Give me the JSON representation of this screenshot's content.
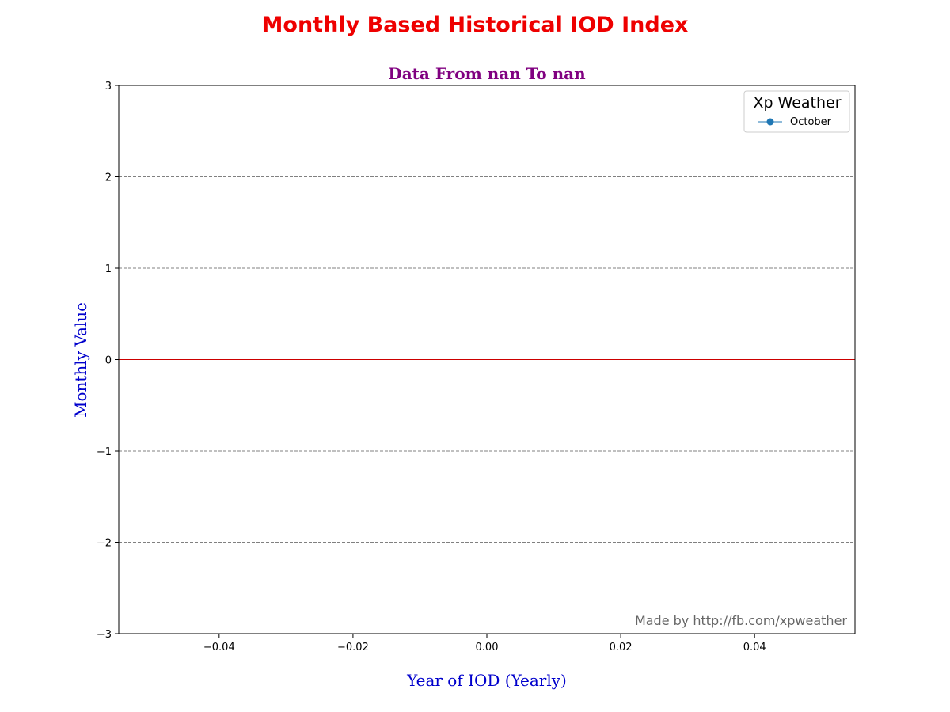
{
  "chart_data": {
    "type": "line",
    "suptitle": "Monthly Based Historical IOD Index",
    "title": "Data From nan To nan",
    "xlabel": "Year of IOD (Yearly)",
    "ylabel": "Monthly Value",
    "xlim": [
      -0.055,
      0.055
    ],
    "ylim": [
      -3,
      3
    ],
    "x_ticks": [
      -0.04,
      -0.02,
      0.0,
      0.02,
      0.04
    ],
    "x_tick_labels": [
      "−0.04",
      "−0.02",
      "0.00",
      "0.02",
      "0.04"
    ],
    "y_ticks": [
      -3,
      -2,
      -1,
      0,
      1,
      2,
      3
    ],
    "y_tick_labels": [
      "−3",
      "−2",
      "−1",
      "0",
      "1",
      "2",
      "3"
    ],
    "grid": "horizontal-dashed",
    "reference_line": {
      "y": 0,
      "color": "#cc0000"
    },
    "legend": {
      "title": "Xp Weather",
      "position": "top-right",
      "entries": [
        "October"
      ]
    },
    "series": [
      {
        "name": "October",
        "x": [],
        "values": [],
        "color": "#1f77b4",
        "marker": "circle"
      }
    ],
    "watermark": "Made by http://fb.com/xpweather"
  },
  "colors": {
    "suptitle": "#ee0000",
    "subtitle": "#800080",
    "axis_label": "#0000cc",
    "grid": "#808080",
    "watermark": "#666666",
    "series": "#1f77b4"
  }
}
